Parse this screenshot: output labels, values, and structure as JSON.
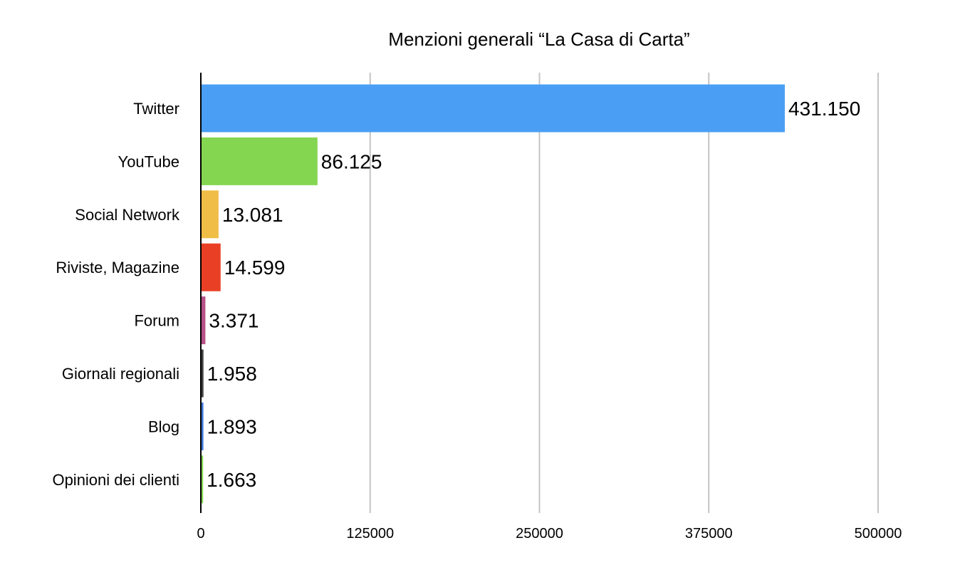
{
  "chart_data": {
    "type": "bar",
    "orientation": "horizontal",
    "title": "Menzioni generali “La Casa di Carta”",
    "xlabel": "",
    "ylabel": "",
    "xlim": [
      0,
      500000
    ],
    "ticks": [
      0,
      125000,
      250000,
      375000,
      500000
    ],
    "grid": true,
    "legend": "none",
    "categories": [
      "Twitter",
      "YouTube",
      "Social Network",
      "Riviste, Magazine",
      "Forum",
      "Giornali regionali",
      "Blog",
      "Opinioni dei clienti"
    ],
    "values": [
      431150,
      86125,
      13081,
      14599,
      3371,
      1958,
      1893,
      1663
    ],
    "value_labels": [
      "431.150",
      "86.125",
      "13.081",
      "14.599",
      "3.371",
      "1.958",
      "1.893",
      "1.663"
    ],
    "colors": [
      "#4a9ff5",
      "#84d651",
      "#f0bd46",
      "#e94025",
      "#b8528a",
      "#424242",
      "#3c78d8",
      "#84d651"
    ]
  }
}
